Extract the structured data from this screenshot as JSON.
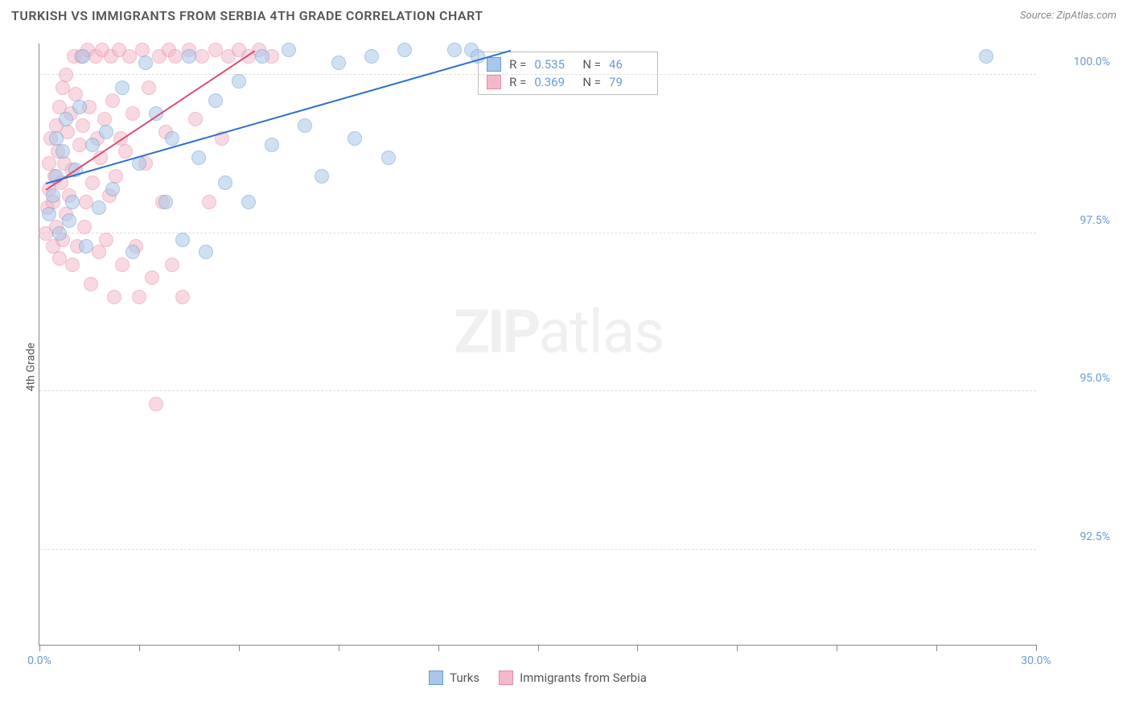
{
  "header": {
    "title": "TURKISH VS IMMIGRANTS FROM SERBIA 4TH GRADE CORRELATION CHART",
    "source": "Source: ZipAtlas.com"
  },
  "ylabel": "4th Grade",
  "watermark_a": "ZIP",
  "watermark_b": "atlas",
  "chart": {
    "type": "scatter",
    "xlim": [
      0,
      30
    ],
    "ylim": [
      91,
      100.5
    ],
    "xticks": [
      0,
      3,
      6,
      9,
      12,
      15,
      18,
      21,
      24,
      27,
      30
    ],
    "xticks_major": [
      0,
      30
    ],
    "yticks": [
      92.5,
      95.0,
      97.5,
      100.0
    ],
    "ytick_labels": [
      "92.5%",
      "95.0%",
      "97.5%",
      "100.0%"
    ],
    "xtick_labels": {
      "0": "0.0%",
      "30": "30.0%"
    },
    "background_color": "#ffffff",
    "grid_color": "#dddddd",
    "point_radius": 9,
    "series": [
      {
        "name": "Turks",
        "color_fill": "#a9c7eb",
        "color_stroke": "#6b9bd1",
        "trend": {
          "x1": 0.2,
          "y1": 98.3,
          "x2": 14.2,
          "y2": 100.4,
          "color": "#2e6fd1"
        },
        "points": [
          [
            0.3,
            97.8
          ],
          [
            0.4,
            98.1
          ],
          [
            0.5,
            98.4
          ],
          [
            0.5,
            99.0
          ],
          [
            0.6,
            97.5
          ],
          [
            0.7,
            98.8
          ],
          [
            0.8,
            99.3
          ],
          [
            0.9,
            97.7
          ],
          [
            1.0,
            98.0
          ],
          [
            1.1,
            98.5
          ],
          [
            1.2,
            99.5
          ],
          [
            1.3,
            100.3
          ],
          [
            1.4,
            97.3
          ],
          [
            1.6,
            98.9
          ],
          [
            1.8,
            97.9
          ],
          [
            2.0,
            99.1
          ],
          [
            2.2,
            98.2
          ],
          [
            2.5,
            99.8
          ],
          [
            2.8,
            97.2
          ],
          [
            3.0,
            98.6
          ],
          [
            3.2,
            100.2
          ],
          [
            3.5,
            99.4
          ],
          [
            3.8,
            98.0
          ],
          [
            4.0,
            99.0
          ],
          [
            4.3,
            97.4
          ],
          [
            4.5,
            100.3
          ],
          [
            4.8,
            98.7
          ],
          [
            5.0,
            97.2
          ],
          [
            5.3,
            99.6
          ],
          [
            5.6,
            98.3
          ],
          [
            6.0,
            99.9
          ],
          [
            6.3,
            98.0
          ],
          [
            6.7,
            100.3
          ],
          [
            7.0,
            98.9
          ],
          [
            7.5,
            100.4
          ],
          [
            8.0,
            99.2
          ],
          [
            8.5,
            98.4
          ],
          [
            9.0,
            100.2
          ],
          [
            9.5,
            99.0
          ],
          [
            10.0,
            100.3
          ],
          [
            10.5,
            98.7
          ],
          [
            11.0,
            100.4
          ],
          [
            12.5,
            100.4
          ],
          [
            13.0,
            100.4
          ],
          [
            13.2,
            100.3
          ],
          [
            28.5,
            100.3
          ]
        ]
      },
      {
        "name": "Immigrants from Serbia",
        "color_fill": "#f4b9c9",
        "color_stroke": "#e88aa5",
        "trend": {
          "x1": 0.2,
          "y1": 98.2,
          "x2": 6.5,
          "y2": 100.4,
          "color": "#d94f78"
        },
        "points": [
          [
            0.2,
            97.5
          ],
          [
            0.25,
            97.9
          ],
          [
            0.3,
            98.2
          ],
          [
            0.3,
            98.6
          ],
          [
            0.35,
            99.0
          ],
          [
            0.4,
            97.3
          ],
          [
            0.4,
            98.0
          ],
          [
            0.45,
            98.4
          ],
          [
            0.5,
            99.2
          ],
          [
            0.5,
            97.6
          ],
          [
            0.55,
            98.8
          ],
          [
            0.6,
            99.5
          ],
          [
            0.6,
            97.1
          ],
          [
            0.65,
            98.3
          ],
          [
            0.7,
            99.8
          ],
          [
            0.7,
            97.4
          ],
          [
            0.75,
            98.6
          ],
          [
            0.8,
            100.0
          ],
          [
            0.8,
            97.8
          ],
          [
            0.85,
            99.1
          ],
          [
            0.9,
            98.1
          ],
          [
            0.95,
            99.4
          ],
          [
            1.0,
            97.0
          ],
          [
            1.0,
            98.5
          ],
          [
            1.05,
            100.3
          ],
          [
            1.1,
            99.7
          ],
          [
            1.15,
            97.3
          ],
          [
            1.2,
            98.9
          ],
          [
            1.25,
            100.3
          ],
          [
            1.3,
            99.2
          ],
          [
            1.35,
            97.6
          ],
          [
            1.4,
            98.0
          ],
          [
            1.45,
            100.4
          ],
          [
            1.5,
            99.5
          ],
          [
            1.55,
            96.7
          ],
          [
            1.6,
            98.3
          ],
          [
            1.7,
            100.3
          ],
          [
            1.75,
            99.0
          ],
          [
            1.8,
            97.2
          ],
          [
            1.85,
            98.7
          ],
          [
            1.9,
            100.4
          ],
          [
            1.95,
            99.3
          ],
          [
            2.0,
            97.4
          ],
          [
            2.1,
            98.1
          ],
          [
            2.15,
            100.3
          ],
          [
            2.2,
            99.6
          ],
          [
            2.25,
            96.5
          ],
          [
            2.3,
            98.4
          ],
          [
            2.4,
            100.4
          ],
          [
            2.45,
            99.0
          ],
          [
            2.5,
            97.0
          ],
          [
            2.6,
            98.8
          ],
          [
            2.7,
            100.3
          ],
          [
            2.8,
            99.4
          ],
          [
            2.9,
            97.3
          ],
          [
            3.0,
            96.5
          ],
          [
            3.1,
            100.4
          ],
          [
            3.2,
            98.6
          ],
          [
            3.3,
            99.8
          ],
          [
            3.4,
            96.8
          ],
          [
            3.5,
            94.8
          ],
          [
            3.6,
            100.3
          ],
          [
            3.7,
            98.0
          ],
          [
            3.8,
            99.1
          ],
          [
            3.9,
            100.4
          ],
          [
            4.0,
            97.0
          ],
          [
            4.1,
            100.3
          ],
          [
            4.3,
            96.5
          ],
          [
            4.5,
            100.4
          ],
          [
            4.7,
            99.3
          ],
          [
            4.9,
            100.3
          ],
          [
            5.1,
            98.0
          ],
          [
            5.3,
            100.4
          ],
          [
            5.5,
            99.0
          ],
          [
            5.7,
            100.3
          ],
          [
            6.0,
            100.4
          ],
          [
            6.3,
            100.3
          ],
          [
            6.6,
            100.4
          ],
          [
            7.0,
            100.3
          ]
        ]
      }
    ]
  },
  "stats": [
    {
      "fill": "#a9c7eb",
      "stroke": "#6b9bd1",
      "r": "0.535",
      "n": "46"
    },
    {
      "fill": "#f4b9c9",
      "stroke": "#e88aa5",
      "r": "0.369",
      "n": "79"
    }
  ],
  "stats_labels": {
    "R": "R =",
    "N": "N ="
  },
  "legend": [
    {
      "fill": "#a9c7eb",
      "stroke": "#6b9bd1",
      "label": "Turks"
    },
    {
      "fill": "#f4b9c9",
      "stroke": "#e88aa5",
      "label": "Immigrants from Serbia"
    }
  ]
}
